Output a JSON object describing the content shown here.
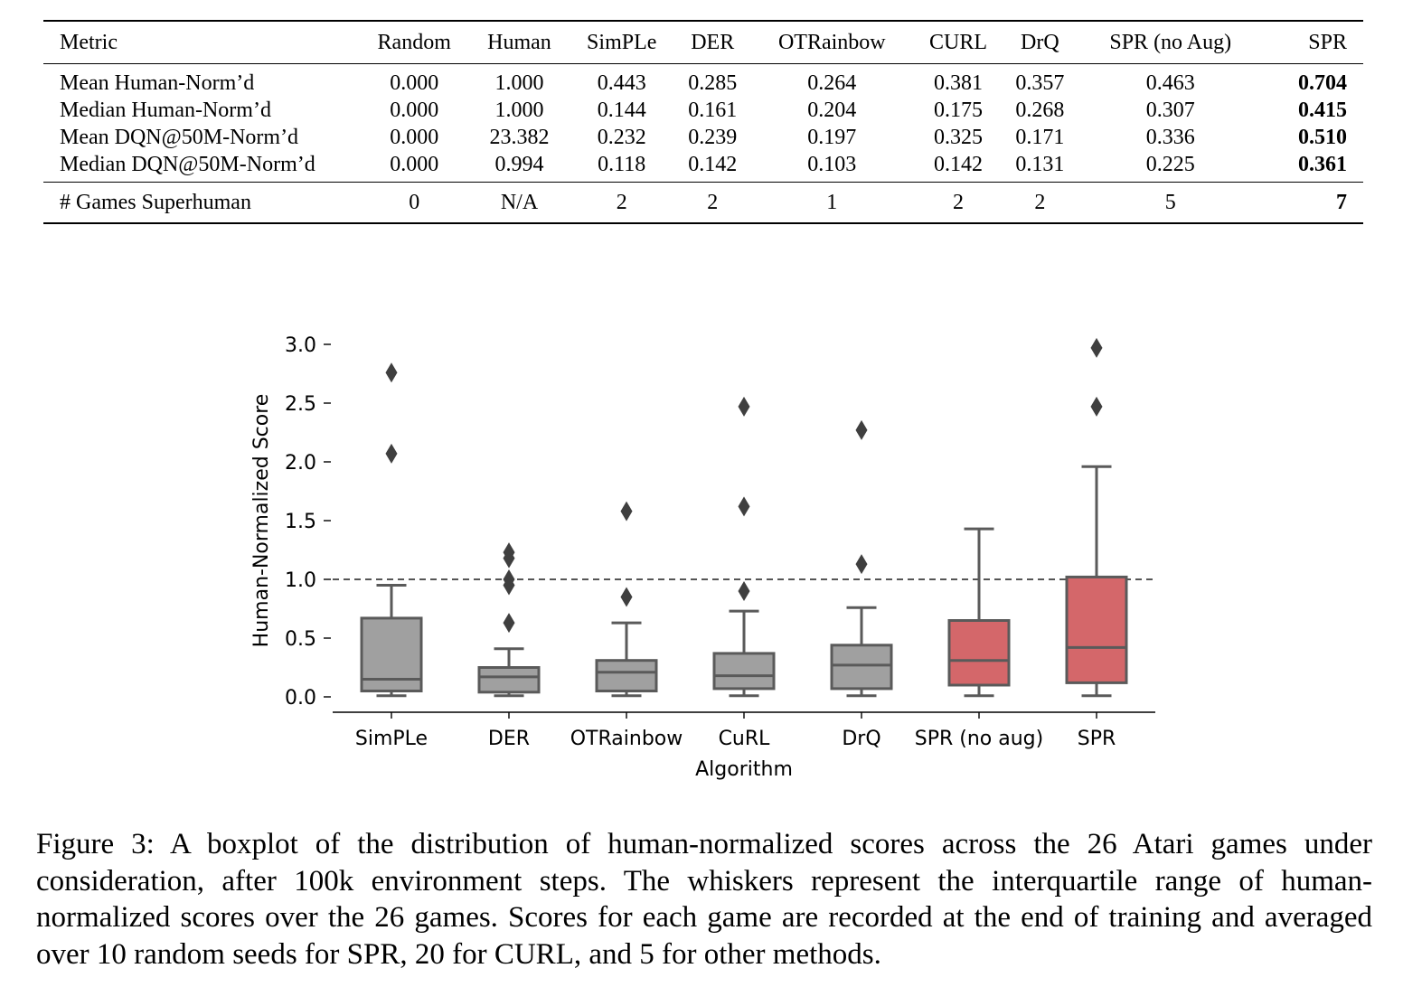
{
  "table": {
    "headers": [
      "Metric",
      "Random",
      "Human",
      "SimPLe",
      "DER",
      "OTRainbow",
      "CURL",
      "DrQ",
      "SPR (no Aug)",
      "SPR"
    ],
    "rows": [
      [
        "Mean Human-Norm’d",
        "0.000",
        "1.000",
        "0.443",
        "0.285",
        "0.264",
        "0.381",
        "0.357",
        "0.463",
        "0.704"
      ],
      [
        "Median Human-Norm’d",
        "0.000",
        "1.000",
        "0.144",
        "0.161",
        "0.204",
        "0.175",
        "0.268",
        "0.307",
        "0.415"
      ],
      [
        "Mean DQN@50M-Norm’d",
        "0.000",
        "23.382",
        "0.232",
        "0.239",
        "0.197",
        "0.325",
        "0.171",
        "0.336",
        "0.510"
      ],
      [
        "Median DQN@50M-Norm’d",
        "0.000",
        "0.994",
        "0.118",
        "0.142",
        "0.103",
        "0.142",
        "0.131",
        "0.225",
        "0.361"
      ]
    ],
    "superhuman_row": [
      "# Games Superhuman",
      "0",
      "N/A",
      "2",
      "2",
      "1",
      "2",
      "2",
      "5",
      "7"
    ]
  },
  "chart_data": {
    "type": "boxplot",
    "xlabel": "Algorithm",
    "ylabel": "Human-Normalized Score",
    "ylim": [
      -0.13,
      3.05
    ],
    "yticks": [
      "0.0",
      "0.5",
      "1.0",
      "1.5",
      "2.0",
      "2.5",
      "3.0"
    ],
    "reference_line": {
      "y": 1.0,
      "style": "dashed"
    },
    "categories": [
      "SimPLe",
      "DER",
      "OTRainbow",
      "CuRL",
      "DrQ",
      "SPR (no aug)",
      "SPR"
    ],
    "boxes": [
      {
        "name": "SimPLe",
        "whisker_low": 0.01,
        "q1": 0.05,
        "median": 0.15,
        "q3": 0.67,
        "whisker_high": 0.95,
        "outliers": [
          2.07,
          2.76
        ],
        "color": "#a0a0a0"
      },
      {
        "name": "DER",
        "whisker_low": 0.01,
        "q1": 0.04,
        "median": 0.17,
        "q3": 0.25,
        "whisker_high": 0.41,
        "outliers": [
          0.63,
          0.95,
          1.0,
          1.18,
          1.23
        ],
        "color": "#a0a0a0"
      },
      {
        "name": "OTRainbow",
        "whisker_low": 0.01,
        "q1": 0.05,
        "median": 0.21,
        "q3": 0.31,
        "whisker_high": 0.63,
        "outliers": [
          0.85,
          1.58
        ],
        "color": "#a0a0a0"
      },
      {
        "name": "CuRL",
        "whisker_low": 0.01,
        "q1": 0.07,
        "median": 0.18,
        "q3": 0.37,
        "whisker_high": 0.73,
        "outliers": [
          0.9,
          1.62,
          2.47
        ],
        "color": "#a0a0a0"
      },
      {
        "name": "DrQ",
        "whisker_low": 0.01,
        "q1": 0.07,
        "median": 0.27,
        "q3": 0.44,
        "whisker_high": 0.76,
        "outliers": [
          1.13,
          2.27
        ],
        "color": "#a0a0a0"
      },
      {
        "name": "SPR (no aug)",
        "whisker_low": 0.01,
        "q1": 0.1,
        "median": 0.31,
        "q3": 0.65,
        "whisker_high": 1.43,
        "outliers": [],
        "color": "#d4676a"
      },
      {
        "name": "SPR",
        "whisker_low": 0.01,
        "q1": 0.12,
        "median": 0.42,
        "q3": 1.02,
        "whisker_high": 1.96,
        "outliers": [
          2.47,
          2.97
        ],
        "color": "#d4676a"
      }
    ]
  },
  "caption": "Figure 3:  A boxplot of the distribution of human-normalized scores across the 26 Atari games under consideration, after 100k environment steps. The whiskers represent the interquartile range of human-normalized scores over the 26 games. Scores for each game are recorded at the end of training and averaged over 10 random seeds for SPR, 20 for CURL, and 5 for other methods."
}
